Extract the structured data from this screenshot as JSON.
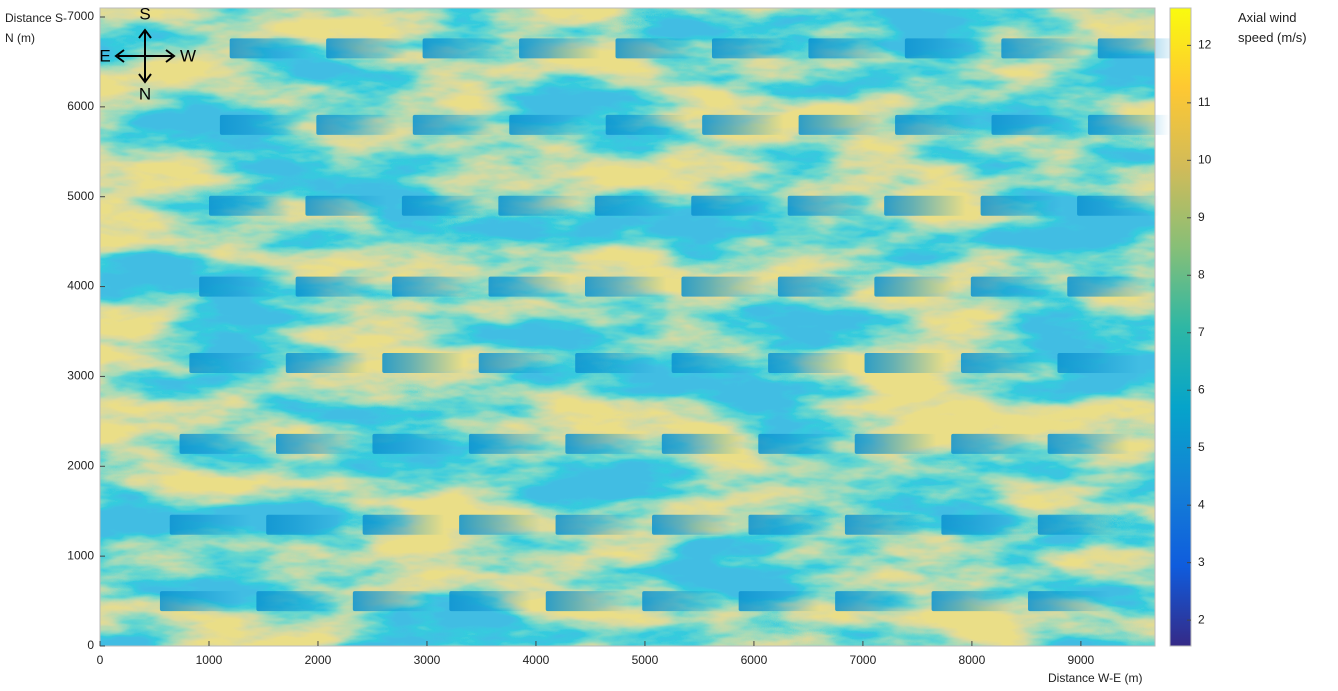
{
  "chart_data": {
    "type": "heatmap",
    "xlabel": "Distance W-E (m)",
    "ylabel": "Distance S-N (m)",
    "colorbar_label": "Axial wind speed (m/s)",
    "colormap": "parula",
    "compass": {
      "top": "S",
      "bottom": "N",
      "left": "E",
      "right": "W"
    },
    "xlim": [
      0,
      9680
    ],
    "ylim": [
      0,
      7100
    ],
    "xticks": [
      0,
      1000,
      2000,
      3000,
      4000,
      5000,
      6000,
      7000,
      8000,
      9000
    ],
    "yticks": [
      0,
      1000,
      2000,
      3000,
      4000,
      5000,
      6000,
      7000
    ],
    "clim": [
      1.55,
      12.65
    ],
    "cticks": [
      2,
      3,
      4,
      5,
      6,
      7,
      8,
      9,
      10,
      11,
      12
    ],
    "ambient_speed": 8,
    "wake_speed": 5,
    "turbines": {
      "x": [
        1190,
        2075,
        2960,
        3845,
        4730,
        5615,
        6500,
        7385,
        8270,
        9155,
        1100,
        1985,
        2870,
        3755,
        4640,
        5525,
        6410,
        7295,
        8180,
        9065,
        1000,
        1885,
        2770,
        3655,
        4540,
        5425,
        6310,
        7195,
        8080,
        8965,
        910,
        1795,
        2680,
        3565,
        4450,
        5335,
        6220,
        7105,
        7990,
        8875,
        820,
        1705,
        2590,
        3475,
        4360,
        5245,
        6130,
        7015,
        7900,
        8785,
        730,
        1615,
        2500,
        3385,
        4270,
        5155,
        6040,
        6925,
        7810,
        8695,
        640,
        1525,
        2410,
        3295,
        4180,
        5065,
        5950,
        6835,
        7720,
        8605,
        550,
        1435,
        2320,
        3205,
        4090,
        4975,
        5860,
        6745,
        7630,
        8515
      ],
      "y": [
        6650,
        6650,
        6650,
        6650,
        6650,
        6650,
        6650,
        6650,
        6650,
        6650,
        5800,
        5800,
        5800,
        5800,
        5800,
        5800,
        5800,
        5800,
        5800,
        5800,
        4900,
        4900,
        4900,
        4900,
        4900,
        4900,
        4900,
        4900,
        4900,
        4900,
        4000,
        4000,
        4000,
        4000,
        4000,
        4000,
        4000,
        4000,
        4000,
        4000,
        3150,
        3150,
        3150,
        3150,
        3150,
        3150,
        3150,
        3150,
        3150,
        3150,
        2250,
        2250,
        2250,
        2250,
        2250,
        2250,
        2250,
        2250,
        2250,
        2250,
        1350,
        1350,
        1350,
        1350,
        1350,
        1350,
        1350,
        1350,
        1350,
        1350,
        500,
        500,
        500,
        500,
        500,
        500,
        500,
        500,
        500,
        500
      ]
    }
  }
}
